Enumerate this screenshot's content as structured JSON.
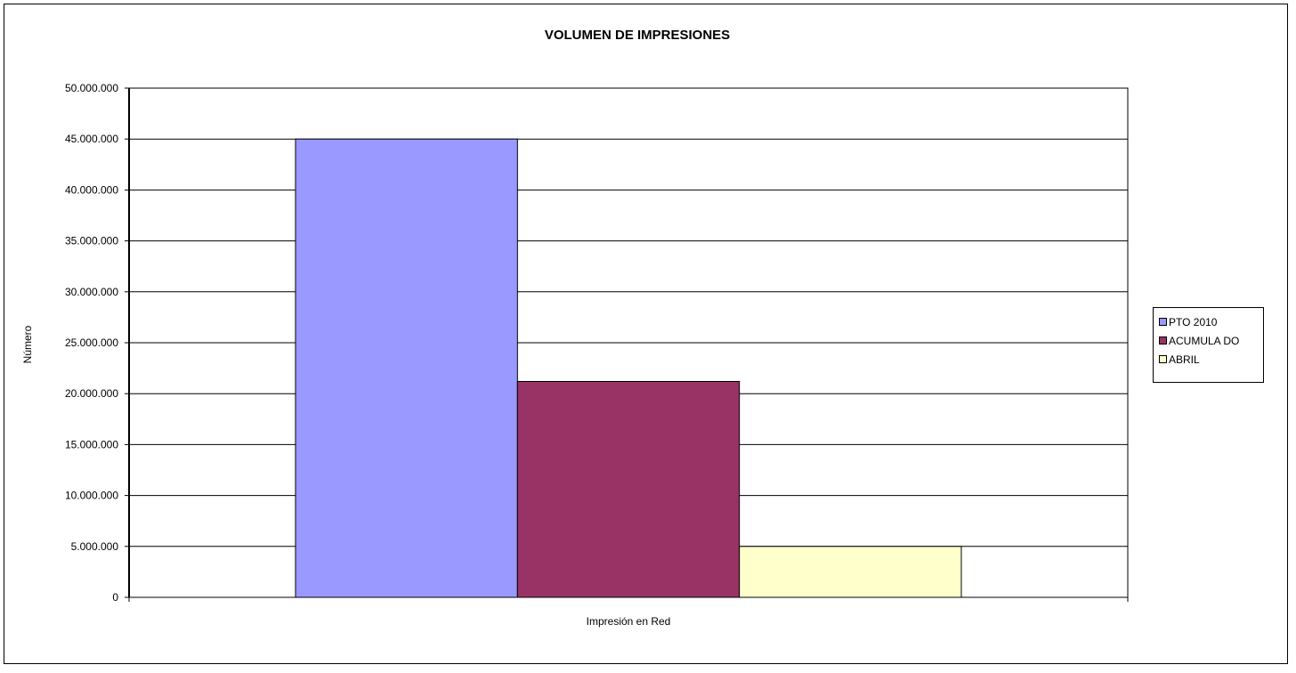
{
  "chart_data": {
    "type": "bar",
    "title": "VOLUMEN DE IMPRESIONES",
    "ylabel": "Número",
    "xlabel": "",
    "categories": [
      "Impresión en Red"
    ],
    "ylim": [
      0,
      50000000
    ],
    "ytick_step": 5000000,
    "ytick_labels": [
      "0",
      "5.000.000",
      "10.000.000",
      "15.000.000",
      "20.000.000",
      "25.000.000",
      "30.000.000",
      "35.000.000",
      "40.000.000",
      "45.000.000",
      "50.000.000"
    ],
    "grid": true,
    "legend_position": "right",
    "series": [
      {
        "name": "PTO  2010",
        "values": [
          45000000
        ],
        "color": "#9999ff"
      },
      {
        "name": "ACUMULA DO",
        "values": [
          21200000
        ],
        "color": "#993366"
      },
      {
        "name": "ABRIL",
        "values": [
          5000000
        ],
        "color": "#ffffcc"
      }
    ]
  }
}
